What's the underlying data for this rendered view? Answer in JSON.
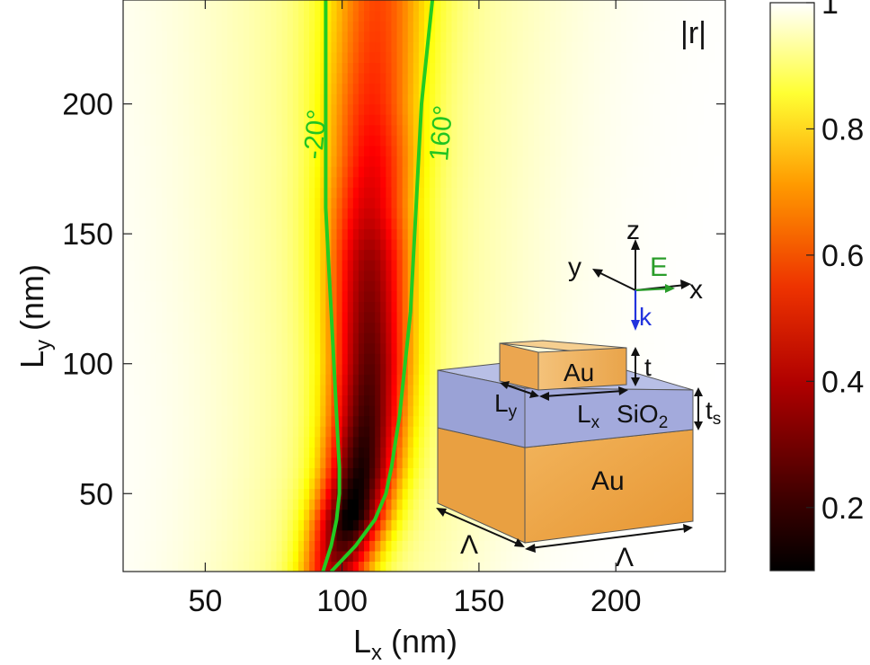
{
  "chart_data": {
    "type": "heatmap",
    "title": "",
    "quantity_label": "|r|",
    "xlabel": {
      "main": "L",
      "sub": "x",
      "unit": " (nm)"
    },
    "ylabel": {
      "main": "L",
      "sub": "y",
      "unit": " (nm)"
    },
    "xlim": [
      20,
      240
    ],
    "ylim": [
      20,
      240
    ],
    "xticks": [
      50,
      100,
      150,
      200
    ],
    "yticks": [
      50,
      100,
      150,
      200
    ],
    "colorbar": {
      "range": [
        0.1,
        1.0
      ],
      "ticks": [
        0.2,
        0.4,
        0.6,
        0.8,
        1
      ],
      "tick_labels": [
        "0.2",
        "0.4",
        "0.6",
        "0.8",
        "1"
      ],
      "colormap": "hot"
    },
    "resonance_minimum": {
      "description_values": "Lx of minimum |r| vs Ly",
      "ly": [
        20,
        40,
        60,
        80,
        100,
        120,
        140,
        160,
        180,
        200,
        220,
        240
      ],
      "lx": [
        98,
        103,
        107,
        109,
        110,
        110,
        110,
        110,
        111,
        111,
        112,
        113
      ],
      "min_r": [
        0.45,
        0.2,
        0.25,
        0.3,
        0.34,
        0.38,
        0.42,
        0.5,
        0.55,
        0.6,
        0.63,
        0.65
      ]
    },
    "series": [
      {
        "name": "-20°",
        "color": "#22cc22",
        "ly": [
          20,
          30,
          40,
          50,
          60,
          80,
          100,
          120,
          140,
          160,
          180,
          200,
          220,
          240
        ],
        "lx": [
          93,
          96,
          98,
          99,
          99,
          98,
          97,
          96,
          95,
          94,
          94,
          94,
          94,
          94
        ]
      },
      {
        "name": "160°",
        "color": "#22cc22",
        "ly": [
          20,
          30,
          40,
          50,
          60,
          80,
          100,
          120,
          140,
          160,
          180,
          200,
          220,
          240
        ],
        "lx": [
          96,
          105,
          112,
          116,
          118,
          121,
          123,
          125,
          126,
          127,
          128,
          129,
          131,
          133
        ]
      }
    ],
    "inset": {
      "axes": {
        "z": "z",
        "y": "y",
        "x": "x",
        "E": "E",
        "k": "k"
      },
      "labels": {
        "top_block": "Au",
        "bottom_block": "Au",
        "spacer": "SiO",
        "spacer_sub": "2",
        "t": "t",
        "ts_main": "t",
        "ts_sub": "s",
        "lx_main": "L",
        "lx_sub": "x",
        "ly_main": "L",
        "ly_sub": "y",
        "period_front": "Λ",
        "period_side": "Λ"
      },
      "colors": {
        "gold": "#f0a63a",
        "silica": "#9da6dc",
        "E": "#2a9d2a",
        "k": "#2233dd"
      }
    }
  }
}
